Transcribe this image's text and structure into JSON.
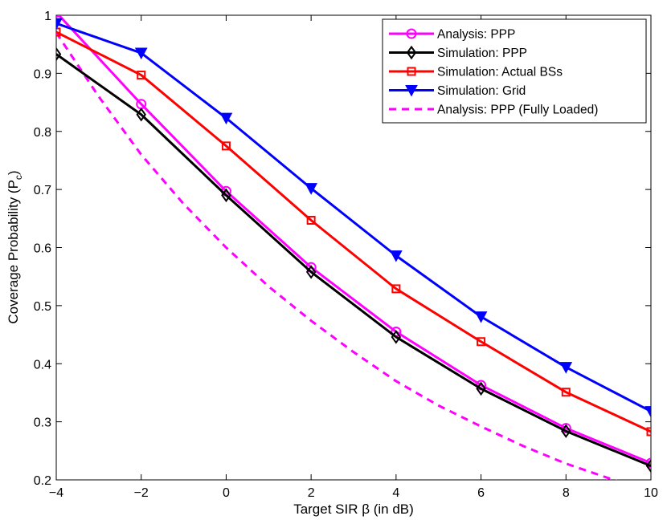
{
  "chart_data": {
    "type": "line",
    "title": "",
    "xlabel": "Target SIR β (in dB)",
    "ylabel": "Coverage Probability (P",
    "ylabel_subscript": "c",
    "ylabel_suffix": ")",
    "xlim": [
      -4,
      10
    ],
    "ylim": [
      0.2,
      1
    ],
    "xticks": [
      -4,
      -2,
      0,
      2,
      4,
      6,
      8,
      10
    ],
    "xtick_labels": [
      "−4",
      "−2",
      "0",
      "2",
      "4",
      "6",
      "8",
      "10"
    ],
    "yticks": [
      0.2,
      0.3,
      0.4,
      0.5,
      0.6,
      0.7,
      0.8,
      0.9,
      1
    ],
    "ytick_labels": [
      "0.2",
      "0.3",
      "0.4",
      "0.5",
      "0.6",
      "0.7",
      "0.8",
      "0.9",
      "1"
    ],
    "grid": false,
    "legend_position": "top-right",
    "series": [
      {
        "name": "Analysis: PPP",
        "color": "#ff00ff",
        "marker": "circle",
        "dashed": false,
        "x": [
          -4,
          -2,
          0,
          2,
          4,
          6,
          8,
          10
        ],
        "y": [
          1.005,
          0.847,
          0.697,
          0.566,
          0.455,
          0.363,
          0.289,
          0.229
        ]
      },
      {
        "name": "Simulation: PPP",
        "color": "#000000",
        "marker": "diamond",
        "dashed": false,
        "x": [
          -4,
          -2,
          0,
          2,
          4,
          6,
          8,
          10
        ],
        "y": [
          0.933,
          0.829,
          0.69,
          0.558,
          0.446,
          0.357,
          0.284,
          0.224
        ]
      },
      {
        "name": "Simulation: Actual BSs",
        "color": "#ff0000",
        "marker": "square",
        "dashed": false,
        "x": [
          -4,
          -2,
          0,
          2,
          4,
          6,
          8,
          10
        ],
        "y": [
          0.971,
          0.897,
          0.775,
          0.647,
          0.529,
          0.438,
          0.351,
          0.283
        ]
      },
      {
        "name": "Simulation: Grid",
        "color": "#0000ff",
        "marker": "triangle-down",
        "dashed": false,
        "x": [
          -4,
          -2,
          0,
          2,
          4,
          6,
          8,
          10
        ],
        "y": [
          0.986,
          0.935,
          0.823,
          0.702,
          0.586,
          0.481,
          0.394,
          0.318
        ]
      },
      {
        "name": "Analysis: PPP (Fully Loaded)",
        "color": "#ff00ff",
        "marker": "none",
        "dashed": true,
        "x": [
          -4,
          -3,
          -2,
          -1,
          0,
          1,
          2,
          3,
          4,
          5,
          6,
          7,
          8,
          9,
          9.3
        ],
        "y": [
          0.97,
          0.86,
          0.76,
          0.675,
          0.6,
          0.533,
          0.474,
          0.42,
          0.37,
          0.328,
          0.292,
          0.258,
          0.228,
          0.203,
          0.196
        ]
      }
    ]
  }
}
